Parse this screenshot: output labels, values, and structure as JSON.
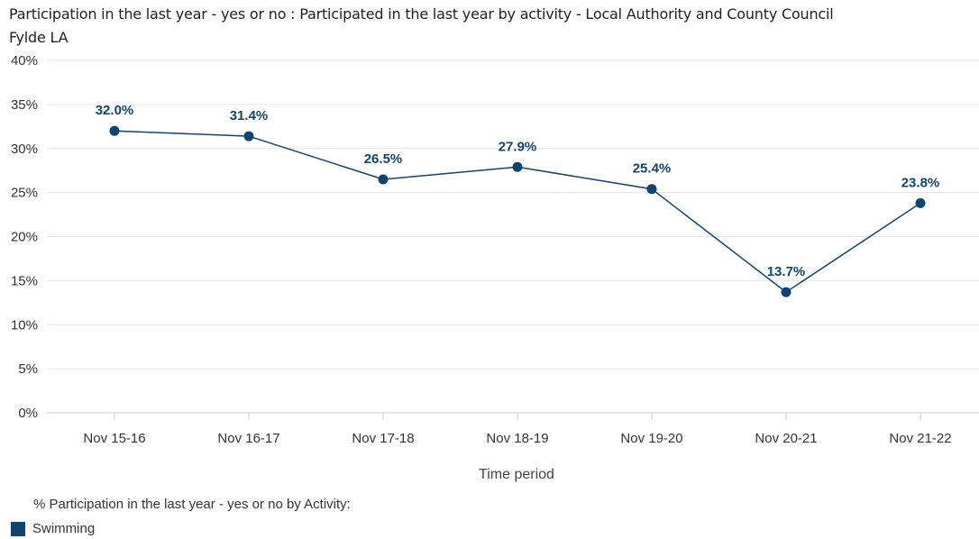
{
  "header": {
    "title_line1": "Participation in the last year - yes or no : Participated in the last year by activity - Local Authority and County Council",
    "title_line2": "Fylde LA"
  },
  "colors": {
    "series": "#0f4470",
    "grid": "#e6e6e6",
    "axis": "#cccccc",
    "tick_text": "#333333"
  },
  "legend": {
    "title": "% Participation in the last year - yes or no by Activity:",
    "items": [
      {
        "label": "Swimming",
        "color": "#0f4470"
      }
    ]
  },
  "chart_data": {
    "type": "line",
    "title": "Participation in the last year - yes or no : Participated in the last year by activity - Local Authority and County Council",
    "subtitle": "Fylde LA",
    "xlabel": "Time period",
    "ylabel": "",
    "categories": [
      "Nov 15-16",
      "Nov 16-17",
      "Nov 17-18",
      "Nov 18-19",
      "Nov 19-20",
      "Nov 20-21",
      "Nov 21-22"
    ],
    "series": [
      {
        "name": "Swimming",
        "values": [
          32.0,
          31.4,
          26.5,
          27.9,
          25.4,
          13.7,
          23.8
        ]
      }
    ],
    "data_labels": [
      "32.0%",
      "31.4%",
      "26.5%",
      "27.9%",
      "25.4%",
      "13.7%",
      "23.8%"
    ],
    "ylim": [
      0,
      40
    ],
    "yticks": [
      "0%",
      "5%",
      "10%",
      "15%",
      "20%",
      "25%",
      "30%",
      "35%",
      "40%"
    ],
    "grid": true,
    "legend_position": "bottom-left"
  }
}
